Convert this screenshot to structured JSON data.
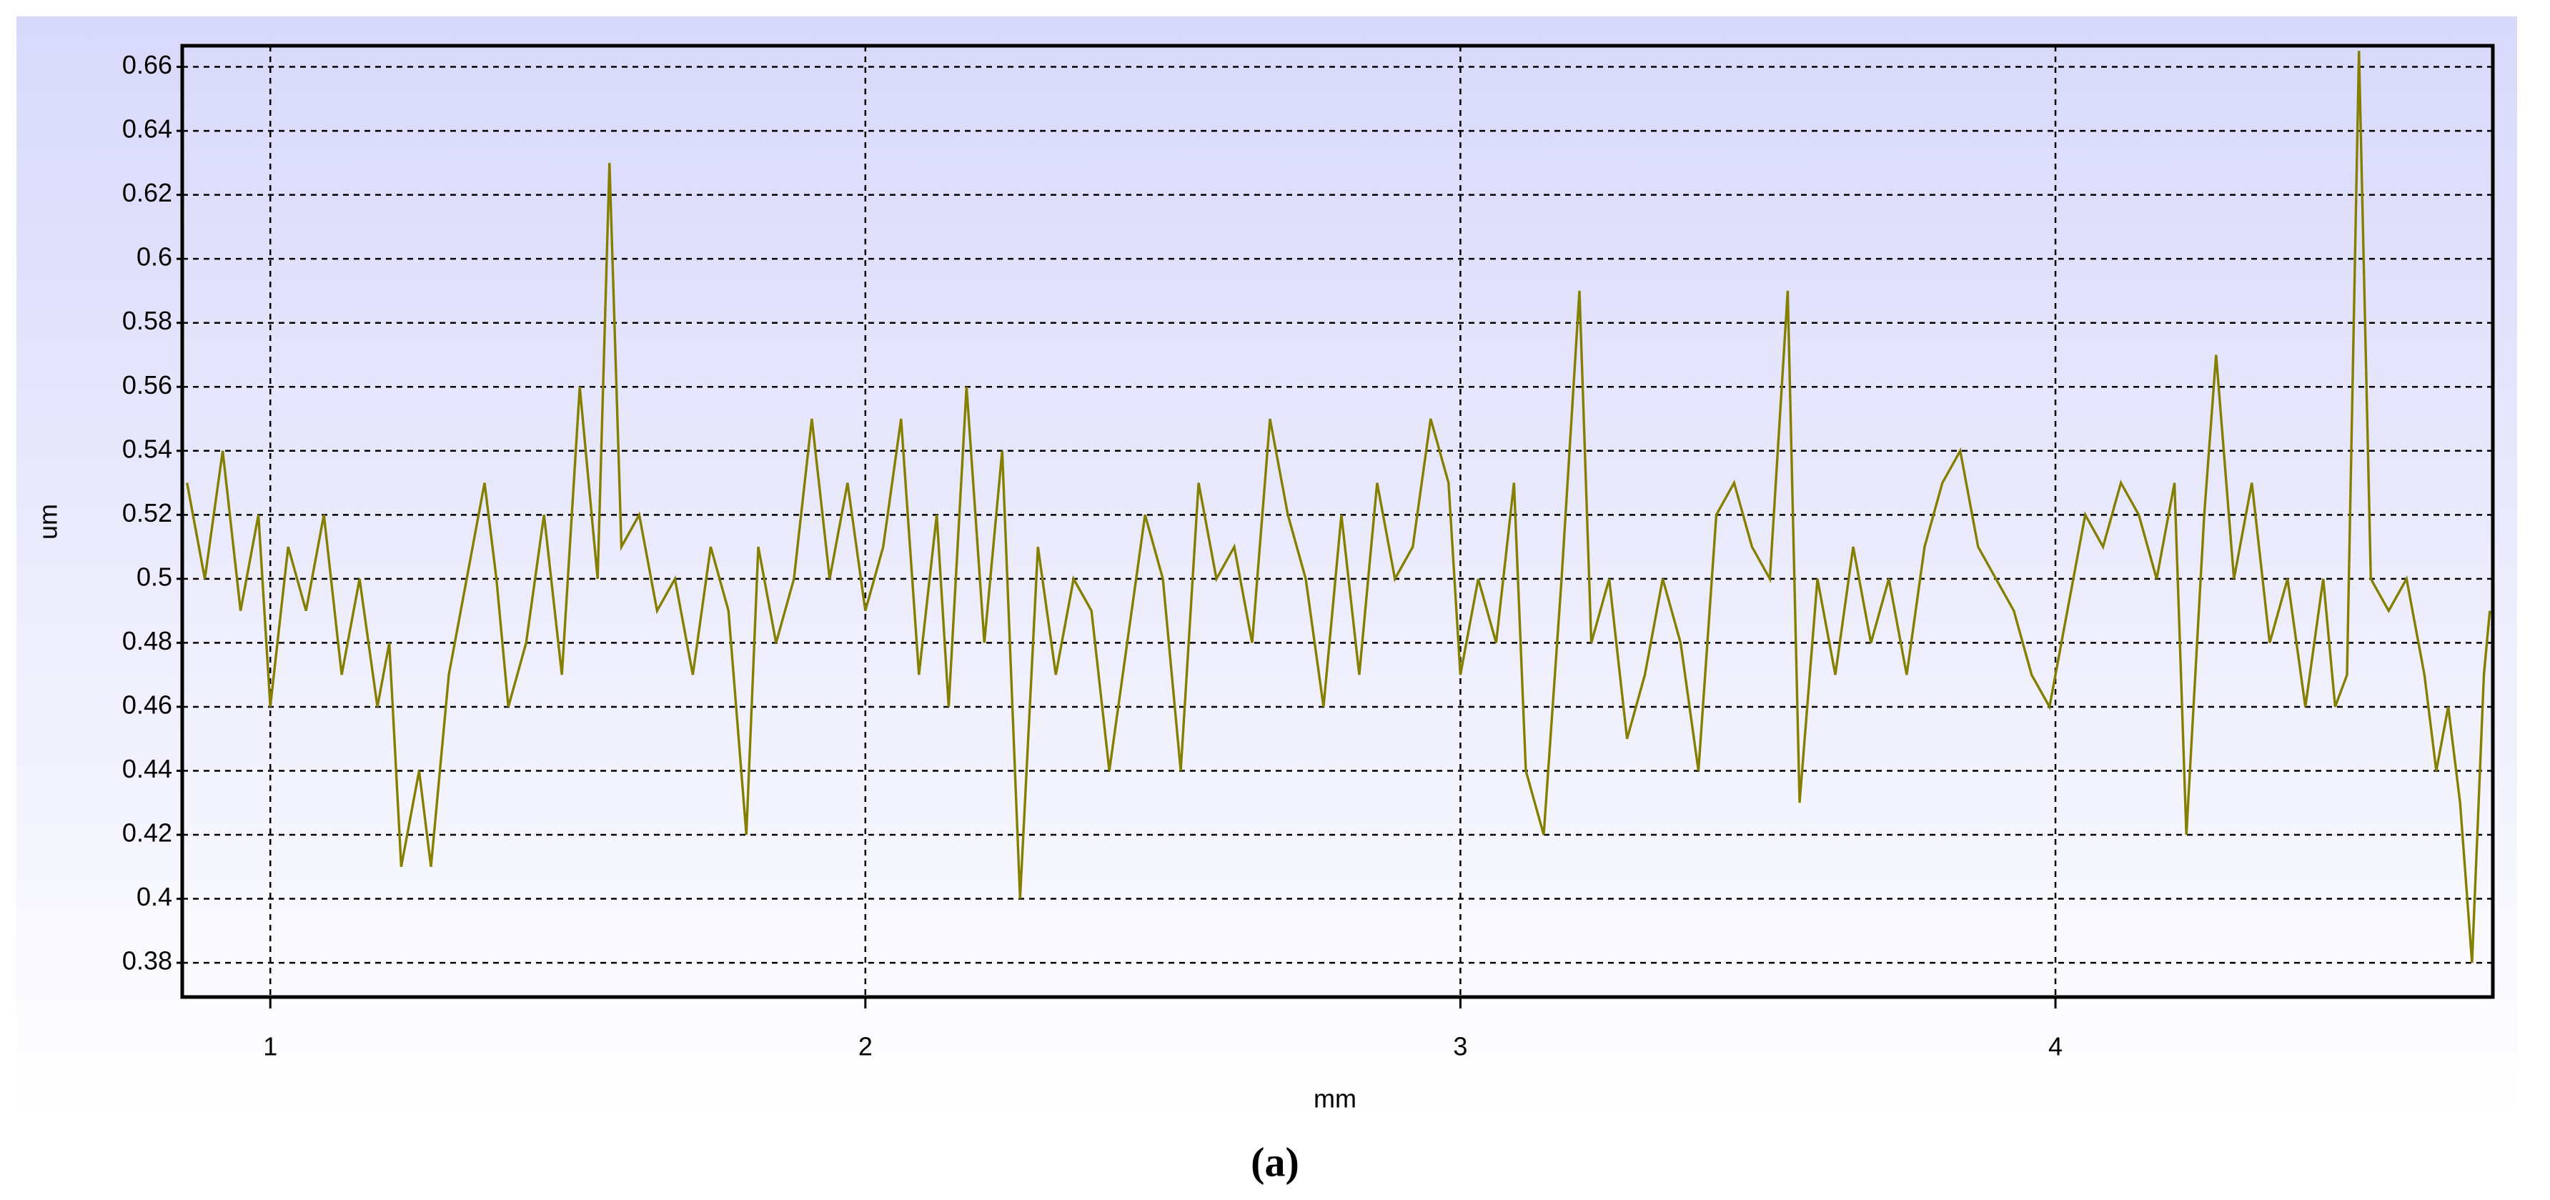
{
  "chart_data": {
    "type": "line",
    "xlabel": "mm",
    "ylabel": "um",
    "caption": "(a)",
    "x": [
      0.86,
      0.89,
      0.92,
      0.95,
      0.98,
      1.0,
      1.03,
      1.06,
      1.09,
      1.12,
      1.15,
      1.18,
      1.2,
      1.22,
      1.25,
      1.27,
      1.3,
      1.33,
      1.36,
      1.38,
      1.4,
      1.43,
      1.46,
      1.49,
      1.52,
      1.55,
      1.57,
      1.59,
      1.62,
      1.65,
      1.68,
      1.71,
      1.74,
      1.77,
      1.8,
      1.82,
      1.85,
      1.88,
      1.91,
      1.94,
      1.97,
      2.0,
      2.03,
      2.06,
      2.09,
      2.12,
      2.14,
      2.17,
      2.2,
      2.23,
      2.26,
      2.29,
      2.32,
      2.35,
      2.38,
      2.41,
      2.44,
      2.47,
      2.5,
      2.53,
      2.56,
      2.59,
      2.62,
      2.65,
      2.68,
      2.71,
      2.74,
      2.77,
      2.8,
      2.83,
      2.86,
      2.89,
      2.92,
      2.95,
      2.98,
      3.0,
      3.03,
      3.06,
      3.09,
      3.11,
      3.14,
      3.17,
      3.2,
      3.22,
      3.25,
      3.28,
      3.31,
      3.34,
      3.37,
      3.4,
      3.43,
      3.46,
      3.49,
      3.52,
      3.55,
      3.57,
      3.6,
      3.63,
      3.66,
      3.69,
      3.72,
      3.75,
      3.78,
      3.81,
      3.84,
      3.87,
      3.9,
      3.93,
      3.96,
      3.99,
      4.02,
      4.05,
      4.08,
      4.11,
      4.14,
      4.17,
      4.2,
      4.22,
      4.25,
      4.27,
      4.3,
      4.33,
      4.36,
      4.39,
      4.42,
      4.45,
      4.47,
      4.49,
      4.51,
      4.53,
      4.56,
      4.59,
      4.62,
      4.64,
      4.66,
      4.68,
      4.7,
      4.72,
      4.73
    ],
    "series": [
      {
        "color": "#857f00",
        "values": [
          0.53,
          0.5,
          0.54,
          0.49,
          0.52,
          0.46,
          0.51,
          0.49,
          0.52,
          0.47,
          0.5,
          0.46,
          0.48,
          0.41,
          0.44,
          0.41,
          0.47,
          0.5,
          0.53,
          0.5,
          0.46,
          0.48,
          0.52,
          0.47,
          0.56,
          0.5,
          0.63,
          0.51,
          0.52,
          0.49,
          0.5,
          0.47,
          0.51,
          0.49,
          0.42,
          0.51,
          0.48,
          0.5,
          0.55,
          0.5,
          0.53,
          0.49,
          0.51,
          0.55,
          0.47,
          0.52,
          0.46,
          0.56,
          0.48,
          0.54,
          0.4,
          0.51,
          0.47,
          0.5,
          0.49,
          0.44,
          0.48,
          0.52,
          0.5,
          0.44,
          0.53,
          0.5,
          0.51,
          0.48,
          0.55,
          0.52,
          0.5,
          0.46,
          0.52,
          0.47,
          0.53,
          0.5,
          0.51,
          0.55,
          0.53,
          0.47,
          0.5,
          0.48,
          0.53,
          0.44,
          0.42,
          0.5,
          0.59,
          0.48,
          0.5,
          0.45,
          0.47,
          0.5,
          0.48,
          0.44,
          0.52,
          0.53,
          0.51,
          0.5,
          0.59,
          0.43,
          0.5,
          0.47,
          0.51,
          0.48,
          0.5,
          0.47,
          0.51,
          0.53,
          0.54,
          0.51,
          0.5,
          0.49,
          0.47,
          0.46,
          0.49,
          0.52,
          0.51,
          0.53,
          0.52,
          0.5,
          0.53,
          0.42,
          0.52,
          0.57,
          0.5,
          0.53,
          0.48,
          0.5,
          0.46,
          0.5,
          0.46,
          0.47,
          0.665,
          0.5,
          0.49,
          0.5,
          0.47,
          0.44,
          0.46,
          0.43,
          0.38,
          0.47,
          0.49
        ]
      }
    ],
    "xlim": [
      0.852,
      4.735
    ],
    "ylim": [
      0.3693,
      0.6666
    ],
    "xticks": [
      1,
      2,
      3,
      4
    ],
    "yticks": [
      0.38,
      0.4,
      0.42,
      0.44,
      0.46,
      0.48,
      0.5,
      0.52,
      0.54,
      0.56,
      0.58,
      0.6,
      0.62,
      0.64,
      0.66
    ],
    "grid": true
  }
}
